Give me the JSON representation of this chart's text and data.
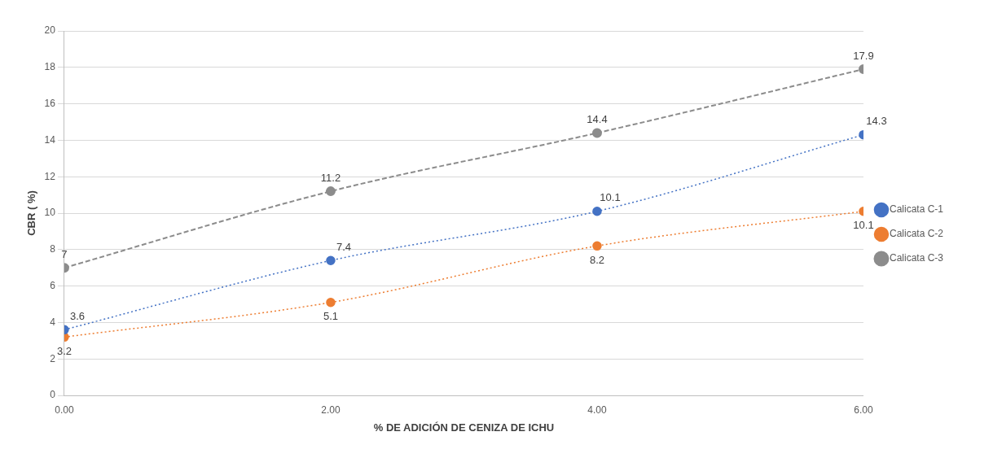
{
  "chart_data": {
    "type": "line",
    "xlabel": "% DE ADICIÓN DE CENIZA DE ICHU",
    "ylabel": "CBR ( %)",
    "x": [
      0,
      2,
      4,
      6
    ],
    "series": [
      {
        "name": "Calicata C-1",
        "color": "#4472c4",
        "values": [
          3.6,
          7.4,
          10.1,
          14.3
        ],
        "line_style": "dotted"
      },
      {
        "name": "Calicata C-2",
        "color": "#ed7d31",
        "values": [
          3.2,
          5.1,
          8.2,
          10.1
        ],
        "line_style": "dotted"
      },
      {
        "name": "Calicata C-3",
        "color": "#8c8c8c",
        "values": [
          7,
          11.2,
          14.4,
          17.9
        ],
        "line_style": "dashed"
      }
    ],
    "xlim": [
      0,
      6
    ],
    "xticks": [
      {
        "value": 0,
        "label": "0.00"
      },
      {
        "value": 2,
        "label": "2.00"
      },
      {
        "value": 4,
        "label": "4.00"
      },
      {
        "value": 6,
        "label": "6.00"
      }
    ],
    "ylim": [
      0,
      20
    ],
    "yticks": [
      0,
      2,
      4,
      6,
      8,
      10,
      12,
      14,
      16,
      18,
      20
    ],
    "grid": "y",
    "legend": "right",
    "marker": "circle",
    "data_labels": true
  }
}
